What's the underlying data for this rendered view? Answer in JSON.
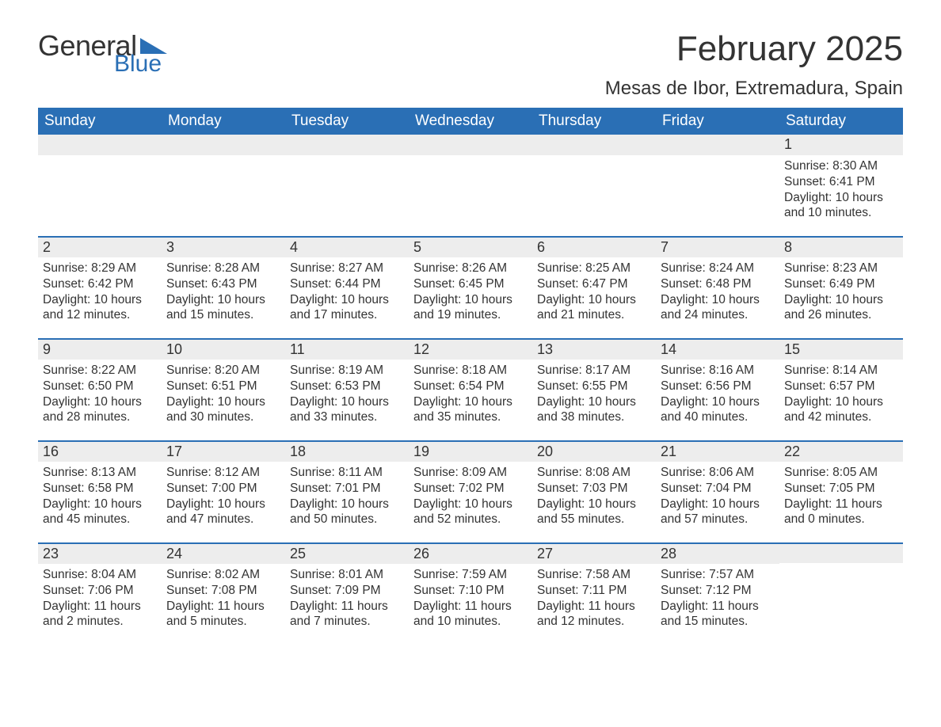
{
  "logo": {
    "general": "General",
    "blue": "Blue",
    "triangle_color": "#2a6fb5"
  },
  "title": "February 2025",
  "location": "Mesas de Ibor, Extremadura, Spain",
  "header_bg": "#2a6fb5",
  "daynum_bg": "#ededed",
  "weekdays": [
    "Sunday",
    "Monday",
    "Tuesday",
    "Wednesday",
    "Thursday",
    "Friday",
    "Saturday"
  ],
  "weeks": [
    [
      {
        "day": "",
        "sunrise": "",
        "sunset": "",
        "daylight": ""
      },
      {
        "day": "",
        "sunrise": "",
        "sunset": "",
        "daylight": ""
      },
      {
        "day": "",
        "sunrise": "",
        "sunset": "",
        "daylight": ""
      },
      {
        "day": "",
        "sunrise": "",
        "sunset": "",
        "daylight": ""
      },
      {
        "day": "",
        "sunrise": "",
        "sunset": "",
        "daylight": ""
      },
      {
        "day": "",
        "sunrise": "",
        "sunset": "",
        "daylight": ""
      },
      {
        "day": "1",
        "sunrise": "Sunrise: 8:30 AM",
        "sunset": "Sunset: 6:41 PM",
        "daylight": "Daylight: 10 hours and 10 minutes."
      }
    ],
    [
      {
        "day": "2",
        "sunrise": "Sunrise: 8:29 AM",
        "sunset": "Sunset: 6:42 PM",
        "daylight": "Daylight: 10 hours and 12 minutes."
      },
      {
        "day": "3",
        "sunrise": "Sunrise: 8:28 AM",
        "sunset": "Sunset: 6:43 PM",
        "daylight": "Daylight: 10 hours and 15 minutes."
      },
      {
        "day": "4",
        "sunrise": "Sunrise: 8:27 AM",
        "sunset": "Sunset: 6:44 PM",
        "daylight": "Daylight: 10 hours and 17 minutes."
      },
      {
        "day": "5",
        "sunrise": "Sunrise: 8:26 AM",
        "sunset": "Sunset: 6:45 PM",
        "daylight": "Daylight: 10 hours and 19 minutes."
      },
      {
        "day": "6",
        "sunrise": "Sunrise: 8:25 AM",
        "sunset": "Sunset: 6:47 PM",
        "daylight": "Daylight: 10 hours and 21 minutes."
      },
      {
        "day": "7",
        "sunrise": "Sunrise: 8:24 AM",
        "sunset": "Sunset: 6:48 PM",
        "daylight": "Daylight: 10 hours and 24 minutes."
      },
      {
        "day": "8",
        "sunrise": "Sunrise: 8:23 AM",
        "sunset": "Sunset: 6:49 PM",
        "daylight": "Daylight: 10 hours and 26 minutes."
      }
    ],
    [
      {
        "day": "9",
        "sunrise": "Sunrise: 8:22 AM",
        "sunset": "Sunset: 6:50 PM",
        "daylight": "Daylight: 10 hours and 28 minutes."
      },
      {
        "day": "10",
        "sunrise": "Sunrise: 8:20 AM",
        "sunset": "Sunset: 6:51 PM",
        "daylight": "Daylight: 10 hours and 30 minutes."
      },
      {
        "day": "11",
        "sunrise": "Sunrise: 8:19 AM",
        "sunset": "Sunset: 6:53 PM",
        "daylight": "Daylight: 10 hours and 33 minutes."
      },
      {
        "day": "12",
        "sunrise": "Sunrise: 8:18 AM",
        "sunset": "Sunset: 6:54 PM",
        "daylight": "Daylight: 10 hours and 35 minutes."
      },
      {
        "day": "13",
        "sunrise": "Sunrise: 8:17 AM",
        "sunset": "Sunset: 6:55 PM",
        "daylight": "Daylight: 10 hours and 38 minutes."
      },
      {
        "day": "14",
        "sunrise": "Sunrise: 8:16 AM",
        "sunset": "Sunset: 6:56 PM",
        "daylight": "Daylight: 10 hours and 40 minutes."
      },
      {
        "day": "15",
        "sunrise": "Sunrise: 8:14 AM",
        "sunset": "Sunset: 6:57 PM",
        "daylight": "Daylight: 10 hours and 42 minutes."
      }
    ],
    [
      {
        "day": "16",
        "sunrise": "Sunrise: 8:13 AM",
        "sunset": "Sunset: 6:58 PM",
        "daylight": "Daylight: 10 hours and 45 minutes."
      },
      {
        "day": "17",
        "sunrise": "Sunrise: 8:12 AM",
        "sunset": "Sunset: 7:00 PM",
        "daylight": "Daylight: 10 hours and 47 minutes."
      },
      {
        "day": "18",
        "sunrise": "Sunrise: 8:11 AM",
        "sunset": "Sunset: 7:01 PM",
        "daylight": "Daylight: 10 hours and 50 minutes."
      },
      {
        "day": "19",
        "sunrise": "Sunrise: 8:09 AM",
        "sunset": "Sunset: 7:02 PM",
        "daylight": "Daylight: 10 hours and 52 minutes."
      },
      {
        "day": "20",
        "sunrise": "Sunrise: 8:08 AM",
        "sunset": "Sunset: 7:03 PM",
        "daylight": "Daylight: 10 hours and 55 minutes."
      },
      {
        "day": "21",
        "sunrise": "Sunrise: 8:06 AM",
        "sunset": "Sunset: 7:04 PM",
        "daylight": "Daylight: 10 hours and 57 minutes."
      },
      {
        "day": "22",
        "sunrise": "Sunrise: 8:05 AM",
        "sunset": "Sunset: 7:05 PM",
        "daylight": "Daylight: 11 hours and 0 minutes."
      }
    ],
    [
      {
        "day": "23",
        "sunrise": "Sunrise: 8:04 AM",
        "sunset": "Sunset: 7:06 PM",
        "daylight": "Daylight: 11 hours and 2 minutes."
      },
      {
        "day": "24",
        "sunrise": "Sunrise: 8:02 AM",
        "sunset": "Sunset: 7:08 PM",
        "daylight": "Daylight: 11 hours and 5 minutes."
      },
      {
        "day": "25",
        "sunrise": "Sunrise: 8:01 AM",
        "sunset": "Sunset: 7:09 PM",
        "daylight": "Daylight: 11 hours and 7 minutes."
      },
      {
        "day": "26",
        "sunrise": "Sunrise: 7:59 AM",
        "sunset": "Sunset: 7:10 PM",
        "daylight": "Daylight: 11 hours and 10 minutes."
      },
      {
        "day": "27",
        "sunrise": "Sunrise: 7:58 AM",
        "sunset": "Sunset: 7:11 PM",
        "daylight": "Daylight: 11 hours and 12 minutes."
      },
      {
        "day": "28",
        "sunrise": "Sunrise: 7:57 AM",
        "sunset": "Sunset: 7:12 PM",
        "daylight": "Daylight: 11 hours and 15 minutes."
      },
      {
        "day": "",
        "sunrise": "",
        "sunset": "",
        "daylight": ""
      }
    ]
  ]
}
